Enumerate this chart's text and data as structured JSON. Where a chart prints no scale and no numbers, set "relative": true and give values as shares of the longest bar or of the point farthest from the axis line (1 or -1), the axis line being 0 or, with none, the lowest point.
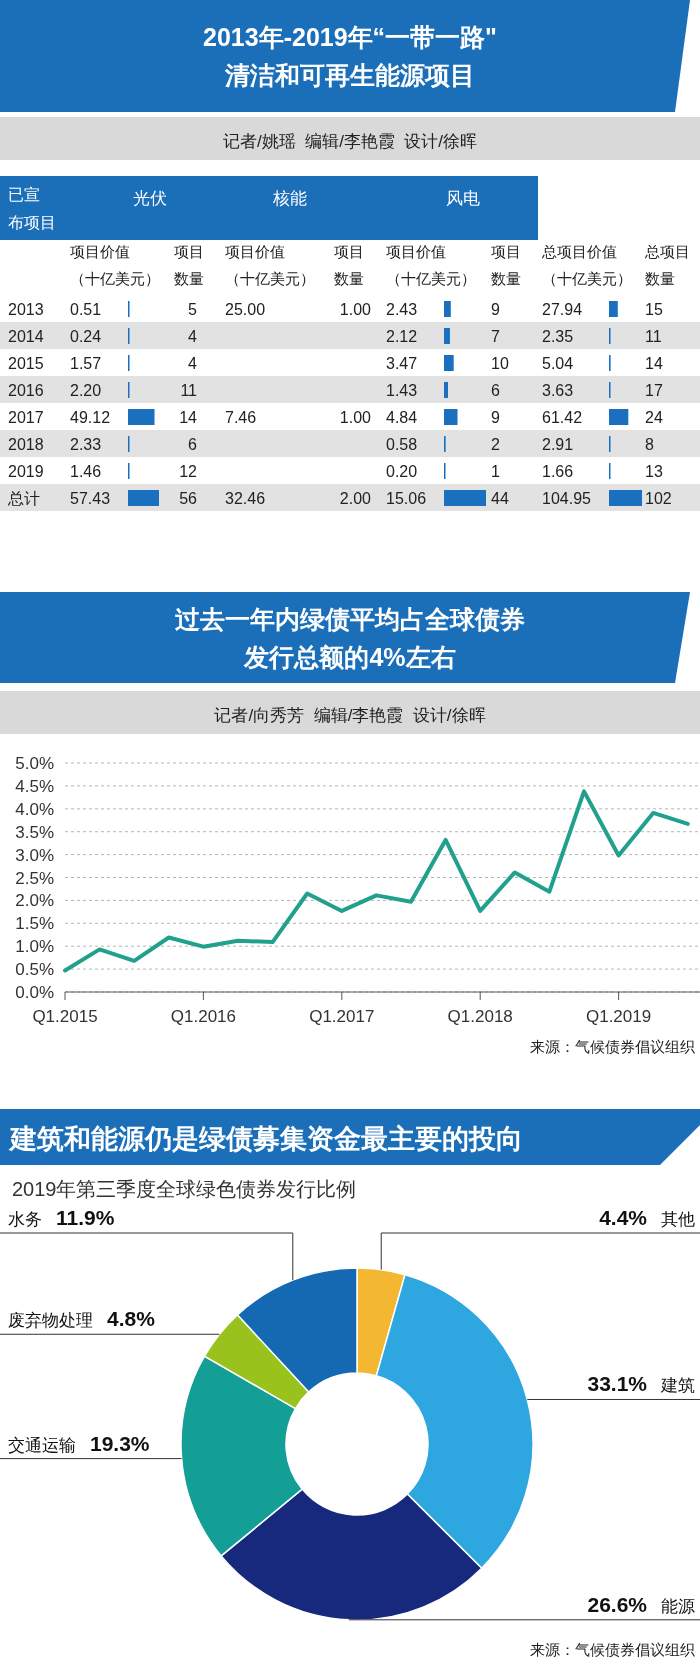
{
  "chart_data": [
    {
      "type": "other",
      "title": "2013年-2019年“一带一路\"清洁和可再生能源项目",
      "subtitle": "记者/姚瑶  编辑/李艳霞  设计/徐晖"
    },
    {
      "type": "heatmap",
      "ylabel": "已宣布项目",
      "annotations": [
        "光伏",
        "核能",
        "风电"
      ],
      "categories": [
        "项目价值（十亿美元）",
        "项目数量",
        "项目价值（十亿美元）",
        "项目数量",
        "项目价值（十亿美元）",
        "项目数量",
        "总项目价值（十亿美元）",
        "总项目数量"
      ],
      "y_categories": [
        "2013",
        "2014",
        "2015",
        "2016",
        "2017",
        "2018",
        "2019",
        "总计"
      ],
      "cells": [
        [
          0.51,
          5,
          25,
          1,
          2.43,
          9,
          27.94,
          15
        ],
        [
          0.24,
          4,
          null,
          null,
          2.12,
          7,
          2.35,
          11
        ],
        [
          1.57,
          4,
          null,
          null,
          3.47,
          10,
          5.04,
          14
        ],
        [
          2.2,
          11,
          null,
          null,
          1.43,
          6,
          3.63,
          17
        ],
        [
          49.12,
          14,
          7.46,
          1,
          4.84,
          9,
          61.42,
          24
        ],
        [
          2.33,
          6,
          null,
          null,
          0.58,
          2,
          2.91,
          8
        ],
        [
          1.46,
          12,
          null,
          null,
          0.2,
          1,
          1.66,
          13
        ],
        [
          57.43,
          56,
          32.46,
          2,
          15.06,
          44,
          104.95,
          102
        ]
      ],
      "cell_labels": [
        [
          "0.51",
          "5",
          "25.00",
          "1.00",
          "2.43",
          "9",
          "27.94",
          "15"
        ],
        [
          "0.24",
          "4",
          null,
          null,
          "2.12",
          "7",
          "2.35",
          "11"
        ],
        [
          "1.57",
          "4",
          null,
          null,
          "3.47",
          "10",
          "5.04",
          "14"
        ],
        [
          "2.20",
          "11",
          null,
          null,
          "1.43",
          "6",
          "3.63",
          "17"
        ],
        [
          "49.12",
          "14",
          "7.46",
          "1.00",
          "4.84",
          "9",
          "61.42",
          "24"
        ],
        [
          "2.33",
          "6",
          null,
          null,
          "0.58",
          "2",
          "2.91",
          "8"
        ],
        [
          "1.46",
          "12",
          null,
          null,
          "0.20",
          "1",
          "1.66",
          "13"
        ],
        [
          "57.43",
          "56",
          "32.46",
          "2.00",
          "15.06",
          "44",
          "104.95",
          "102"
        ]
      ]
    },
    {
      "type": "bar",
      "orientation": "horizontal",
      "relative": true,
      "color": "#1a6fbf",
      "values": [
        0.0089,
        0.0042,
        0.0273,
        0.0383,
        0.8553,
        0.0406,
        0.0254,
        1
      ]
    },
    {
      "type": "bar",
      "orientation": "horizontal",
      "relative": true,
      "color": "#1a6fbf",
      "values": [
        0.1614,
        0.1408,
        0.2304,
        0.095,
        0.3214,
        0.0385,
        0.0133,
        1
      ]
    },
    {
      "type": "bar",
      "orientation": "horizontal",
      "relative": true,
      "color": "#1a6fbf",
      "values": [
        0.2662,
        0.0224,
        0.048,
        0.0346,
        0.5852,
        0.0277,
        0.0158,
        1
      ]
    },
    {
      "type": "line",
      "title": "过去一年内绿债平均占全球债券发行总额的4%左右",
      "subtitle": "记者/向秀芳  编辑/李艳霞  设计/徐晖",
      "categories": [
        "Q1.2015",
        null,
        null,
        null,
        "Q1.2016",
        null,
        null,
        null,
        "Q1.2017",
        null,
        null,
        null,
        "Q1.2018",
        null,
        null,
        null,
        "Q1.2019",
        null,
        null
      ],
      "values": [
        0.47,
        0.93,
        0.68,
        1.19,
        0.99,
        1.12,
        1.09,
        2.15,
        1.77,
        2.11,
        1.97,
        3.32,
        1.77,
        2.61,
        2.19,
        4.38,
        2.98,
        3.91,
        3.67
      ],
      "color": "#21a08d",
      "ylim": [
        0,
        5
      ],
      "yticks": [
        {
          "value": 0,
          "label": "0.0%"
        },
        {
          "value": 0.5,
          "label": "0.5%"
        },
        {
          "value": 1,
          "label": "1.0%"
        },
        {
          "value": 1.5,
          "label": "1.5%"
        },
        {
          "value": 2,
          "label": "2.0%"
        },
        {
          "value": 2.5,
          "label": "2.5%"
        },
        {
          "value": 3,
          "label": "3.0%"
        },
        {
          "value": 3.5,
          "label": "3.5%"
        },
        {
          "value": 4,
          "label": "4.0%"
        },
        {
          "value": 4.5,
          "label": "4.5%"
        },
        {
          "value": 5,
          "label": "5.0%"
        }
      ],
      "grid": "y",
      "annotations": [
        "来源：气候债券倡议组织"
      ]
    },
    {
      "type": "donut",
      "title": "建筑和能源仍是绿债募集资金最主要的投向",
      "subtitle": "2019年第三季度全球绿色债券发行比例",
      "categories": [
        "其他",
        "建筑",
        "能源",
        "交通运输",
        "废弃物处理",
        "水务"
      ],
      "values": [
        4.4,
        33.1,
        26.6,
        19.3,
        4.8,
        11.9
      ],
      "value_labels": [
        "4.4%",
        "33.1%",
        "26.6%",
        "19.3%",
        "4.8%",
        "11.9%"
      ],
      "colors": [
        "#f4b731",
        "#2ea6e0",
        "#17297d",
        "#139e96",
        "#99c31c",
        "#1469b2"
      ],
      "annotations": [
        "来源：气候债券倡议组织"
      ]
    }
  ]
}
